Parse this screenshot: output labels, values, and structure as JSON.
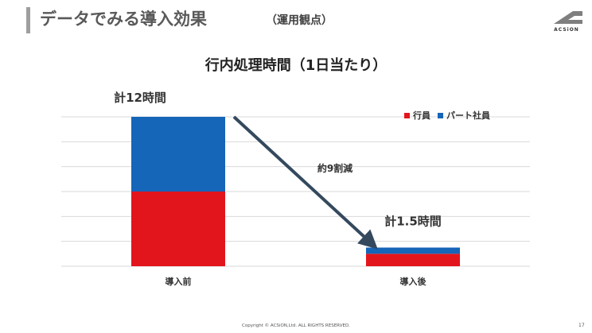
{
  "slide": {
    "title": "データでみる導入効果",
    "subtitle": "（運用観点）",
    "logo_text": "ACSiON",
    "footer": "Copyright © ACSiON,Ltd. ALL RIGHTS RESERVED.",
    "page_number": "17"
  },
  "colors": {
    "series_1": "#e3151c",
    "series_2": "#1565b8",
    "arrow": "#34495e",
    "grid": "#d9d9d9"
  },
  "chart_data": {
    "type": "bar",
    "stacked": true,
    "title": "行内処理時間（1日当たり）",
    "categories": [
      "導入前",
      "導入後"
    ],
    "series": [
      {
        "name": "行員",
        "values": [
          6,
          1.0
        ]
      },
      {
        "name": "パート社員",
        "values": [
          6,
          0.5
        ]
      }
    ],
    "ylim": [
      0,
      12
    ],
    "grid": true,
    "legend_position": "top-right",
    "annotations": {
      "total_before": "計12時間",
      "total_after": "計1.5時間",
      "reduction": "約9割減"
    }
  }
}
